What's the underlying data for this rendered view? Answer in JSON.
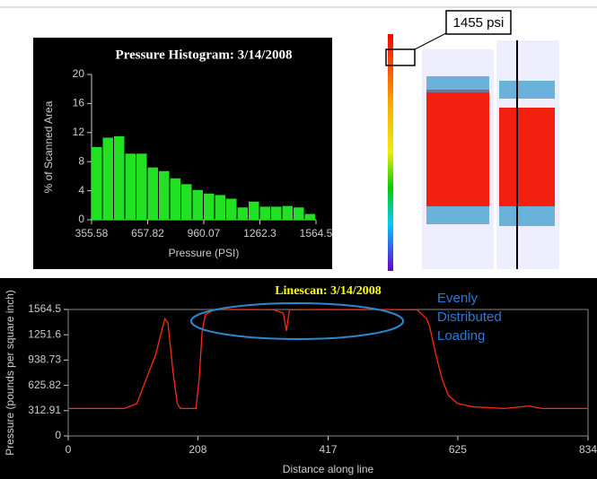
{
  "chart_data": [
    {
      "type": "histogram",
      "title": "Pressure Histogram: 3/14/2008",
      "xlabel": "Pressure (PSI)",
      "ylabel": "% of Scanned Area",
      "bins": [
        355.58,
        416.03,
        476.47,
        536.92,
        597.36,
        657.81,
        718.26,
        778.7,
        839.15,
        899.59,
        960.04,
        1020.49,
        1080.93,
        1141.38,
        1201.82,
        1262.27,
        1322.72,
        1383.16,
        1443.61,
        1504.05,
        1564.5
      ],
      "values": [
        10,
        11.3,
        11.5,
        9.1,
        9.1,
        7.2,
        6.7,
        5.7,
        4.9,
        4.1,
        3.6,
        3.4,
        2.9,
        1.7,
        2.5,
        1.8,
        1.8,
        1.9,
        1.7,
        0.8
      ],
      "color": "#22e022",
      "xlim": [
        355.58,
        1564.5
      ],
      "ylim": [
        0,
        20
      ],
      "xticks": [
        355.58,
        657.82,
        960.07,
        1262.3,
        1564.5
      ],
      "yticks": [
        0,
        4,
        8,
        12,
        16,
        20
      ]
    },
    {
      "type": "line",
      "title": "Linescan: 3/14/2008",
      "xlabel": "Distance along line",
      "ylabel": "Pressure (pounds per square inch)",
      "x": [
        0,
        90,
        110,
        125,
        140,
        150,
        155,
        160,
        168,
        175,
        180,
        205,
        210,
        215,
        220,
        235,
        300,
        330,
        345,
        350,
        355,
        400,
        500,
        560,
        575,
        580,
        590,
        600,
        610,
        625,
        650,
        700,
        740,
        760,
        834
      ],
      "values": [
        340,
        340,
        400,
        700,
        1000,
        1300,
        1450,
        1400,
        800,
        400,
        340,
        340,
        700,
        1300,
        1500,
        1564,
        1564,
        1560,
        1520,
        1300,
        1560,
        1564,
        1564,
        1560,
        1450,
        1350,
        1000,
        700,
        500,
        400,
        360,
        340,
        370,
        340,
        340
      ],
      "color": "#ff2a10",
      "xlim": [
        0,
        834
      ],
      "ylim": [
        0,
        1564.5
      ],
      "xticks": [
        0,
        208,
        417,
        625,
        834
      ],
      "yticks": [
        0,
        312.91,
        625.82,
        938.73,
        1251.6,
        1564.5
      ],
      "annotation": [
        "Evenly",
        "Distributed",
        "Loading"
      ]
    }
  ],
  "pressure_map": {
    "callout": "1455 psi"
  }
}
